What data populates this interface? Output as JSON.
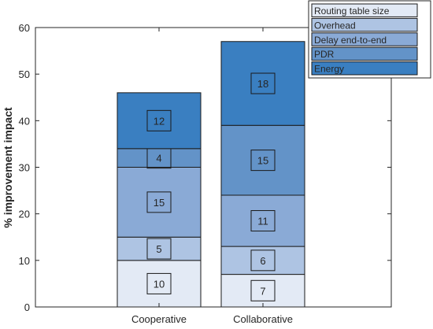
{
  "chart_data": {
    "type": "bar",
    "stacked": true,
    "categories": [
      "Cooperative",
      "Collaborative"
    ],
    "ylabel": "% improvement impact",
    "xlabel": "",
    "title": "",
    "ylim": [
      0,
      60
    ],
    "yticks": [
      0,
      10,
      20,
      30,
      40,
      50,
      60
    ],
    "grid": false,
    "legend_position": "top-right",
    "series": [
      {
        "name": "Routing table size",
        "values": [
          10,
          7
        ],
        "color": "#e3eaf5"
      },
      {
        "name": "Overhead",
        "values": [
          5,
          6
        ],
        "color": "#aec4e3"
      },
      {
        "name": "Delay end-to-end",
        "values": [
          15,
          11
        ],
        "color": "#8aaad6"
      },
      {
        "name": "PDR",
        "values": [
          4,
          15
        ],
        "color": "#6393c8"
      },
      {
        "name": "Energy",
        "values": [
          12,
          18
        ],
        "color": "#3a7fc1"
      }
    ]
  }
}
